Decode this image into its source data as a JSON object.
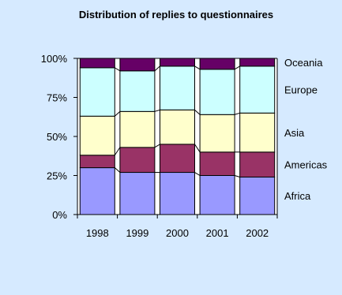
{
  "chart_data": {
    "type": "bar",
    "stacked": true,
    "percent": true,
    "title": "Distribution of replies to questionnaires",
    "xlabel": "",
    "ylabel": "",
    "categories": [
      "1998",
      "1999",
      "2000",
      "2001",
      "2002"
    ],
    "ylim": [
      0,
      100
    ],
    "yticks": [
      "0%",
      "25%",
      "50%",
      "75%",
      "100%"
    ],
    "legend": "right, labels beside last bar",
    "grid": false,
    "series": [
      {
        "name": "Africa",
        "color": "#9999ff",
        "values": [
          30,
          27,
          27,
          25,
          24
        ]
      },
      {
        "name": "Americas",
        "color": "#993366",
        "values": [
          8,
          16,
          18,
          15,
          16
        ]
      },
      {
        "name": "Asia",
        "color": "#ffffcc",
        "values": [
          25,
          23,
          22,
          24,
          25
        ]
      },
      {
        "name": "Europe",
        "color": "#ccffff",
        "values": [
          31,
          26,
          28,
          29,
          30
        ]
      },
      {
        "name": "Oceania",
        "color": "#660066",
        "values": [
          6,
          8,
          5,
          7,
          5
        ]
      }
    ]
  }
}
